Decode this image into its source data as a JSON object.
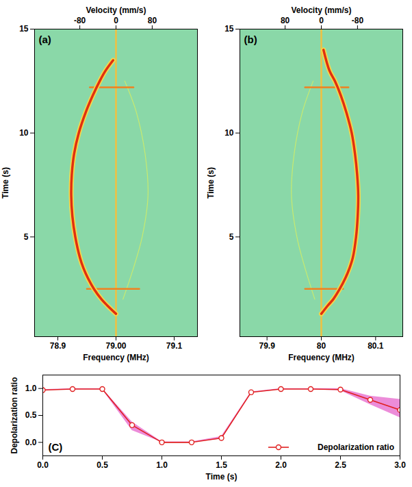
{
  "chart_data": [
    {
      "type": "spectrogram",
      "annotations": [
        "(a)"
      ],
      "xlabel": "Frequency (MHz)",
      "ylabel": "Time (s)",
      "x2label": "Velocity (mm/s)",
      "xlim": [
        78.86,
        79.14
      ],
      "xticks": [
        78.9,
        {
          "value": 79,
          "label": "79.00"
        },
        79.1
      ],
      "x2lim": [
        -180,
        180
      ],
      "x2ticks": [
        -80,
        0,
        80
      ],
      "ylim": [
        0.2,
        15
      ],
      "yticks": [
        5,
        10,
        15
      ],
      "series": [
        {
          "color": "#f0c040",
          "line_style": "solid",
          "x": [
            79.0,
            79.0
          ],
          "y": [
            0.2,
            15
          ]
        },
        {
          "color": "#c8ea70",
          "line_style": "thin",
          "x": [
            79.012,
            79.03,
            79.045,
            79.055,
            79.05,
            79.035,
            79.015
          ],
          "y": [
            2.0,
            3.5,
            5.0,
            7.0,
            9.0,
            11.0,
            12.5
          ]
        },
        {
          "color": "#f08020",
          "line_style": "solid",
          "x": [
            78.95,
            79.04
          ],
          "y": [
            2.5,
            2.5
          ]
        },
        {
          "color": "#f08020",
          "line_style": "solid",
          "x": [
            78.955,
            79.03
          ],
          "y": [
            12.2,
            12.2
          ]
        },
        {
          "color": "#e03010",
          "line_style": "thick",
          "x": [
            79.0,
            78.985,
            78.975,
            78.962,
            78.952,
            78.944,
            78.938,
            78.93,
            78.925,
            78.923,
            78.924,
            78.928,
            78.936,
            78.948,
            78.96,
            78.972,
            78.982,
            78.995
          ],
          "y": [
            1.3,
            1.7,
            2.0,
            2.5,
            3.0,
            3.5,
            4.0,
            5.0,
            6.0,
            7.0,
            8.0,
            9.0,
            10.0,
            11.0,
            11.8,
            12.5,
            13.0,
            13.5
          ]
        }
      ]
    },
    {
      "type": "spectrogram",
      "annotations": [
        "(b)"
      ],
      "xlabel": "Frequency (MHz)",
      "ylabel": "Time (s)",
      "x2label": "Velocity (mm/s)",
      "xlim": [
        79.85,
        80.15
      ],
      "xticks": [
        79.9,
        80,
        80.1
      ],
      "x2lim": [
        180,
        -180
      ],
      "x2ticks": [
        80,
        0,
        -80
      ],
      "ylim": [
        0.2,
        15
      ],
      "yticks": [
        5,
        10,
        15
      ],
      "series": [
        {
          "color": "#f0c040",
          "line_style": "solid",
          "x": [
            80.0,
            80.0
          ],
          "y": [
            0.2,
            15
          ]
        },
        {
          "color": "#c8ea70",
          "line_style": "thin",
          "x": [
            79.988,
            79.97,
            79.955,
            79.945,
            79.95,
            79.965,
            79.985
          ],
          "y": [
            2.0,
            3.5,
            5.0,
            7.0,
            9.0,
            11.0,
            12.5
          ]
        },
        {
          "color": "#f08020",
          "line_style": "solid",
          "x": [
            79.97,
            80.04
          ],
          "y": [
            2.5,
            2.5
          ]
        },
        {
          "color": "#f08020",
          "line_style": "solid",
          "x": [
            79.97,
            80.05
          ],
          "y": [
            12.2,
            12.2
          ]
        },
        {
          "color": "#e03010",
          "line_style": "thick",
          "x": [
            80.0,
            80.012,
            80.022,
            80.034,
            80.044,
            80.052,
            80.058,
            80.064,
            80.067,
            80.068,
            80.066,
            80.062,
            80.056,
            80.046,
            80.036,
            80.025,
            80.015,
            80.004
          ],
          "y": [
            1.3,
            1.7,
            2.0,
            2.5,
            3.0,
            3.5,
            4.0,
            5.0,
            6.0,
            7.0,
            8.0,
            9.0,
            10.0,
            11.0,
            11.8,
            12.5,
            13.0,
            14.0
          ]
        }
      ]
    },
    {
      "type": "line",
      "annotations": [
        "(C)"
      ],
      "xlabel": "Time (s)",
      "ylabel": "Depolarization ratio",
      "xlim": [
        0,
        3
      ],
      "xticks": [
        {
          "value": 0,
          "label": "0.0"
        },
        {
          "value": 0.5,
          "label": "0.5"
        },
        {
          "value": 1,
          "label": "1.0"
        },
        {
          "value": 1.5,
          "label": "1.5"
        },
        {
          "value": 2,
          "label": "2.0"
        },
        {
          "value": 2.5,
          "label": "2.5"
        },
        {
          "value": 3,
          "label": "3.0"
        }
      ],
      "ylim": [
        -0.25,
        1.25
      ],
      "yticks": [
        {
          "value": 0,
          "label": "0.0"
        },
        {
          "value": 0.5,
          "label": "0.5"
        },
        {
          "value": 1,
          "label": "1.0"
        }
      ],
      "legend": "lower right",
      "x": [
        0,
        0.25,
        0.5,
        0.75,
        1.0,
        1.25,
        1.5,
        1.75,
        2.0,
        2.25,
        2.5,
        2.75,
        3.0
      ],
      "series": [
        {
          "name": "Depolarization ratio",
          "color": "#e02020",
          "marker": "circle",
          "line_style": "solid",
          "values": [
            0.97,
            0.99,
            0.99,
            0.32,
            0.0,
            0.0,
            0.08,
            0.93,
            0.99,
            0.99,
            0.98,
            0.79,
            0.6
          ],
          "lower": [
            0.96,
            0.98,
            0.98,
            0.22,
            0.0,
            0.0,
            0.06,
            0.92,
            0.98,
            0.98,
            0.96,
            0.7,
            0.46
          ],
          "upper": [
            0.98,
            1.0,
            1.0,
            0.38,
            0.01,
            0.01,
            0.11,
            0.94,
            1.0,
            1.0,
            1.0,
            0.86,
            0.8
          ]
        }
      ]
    }
  ]
}
